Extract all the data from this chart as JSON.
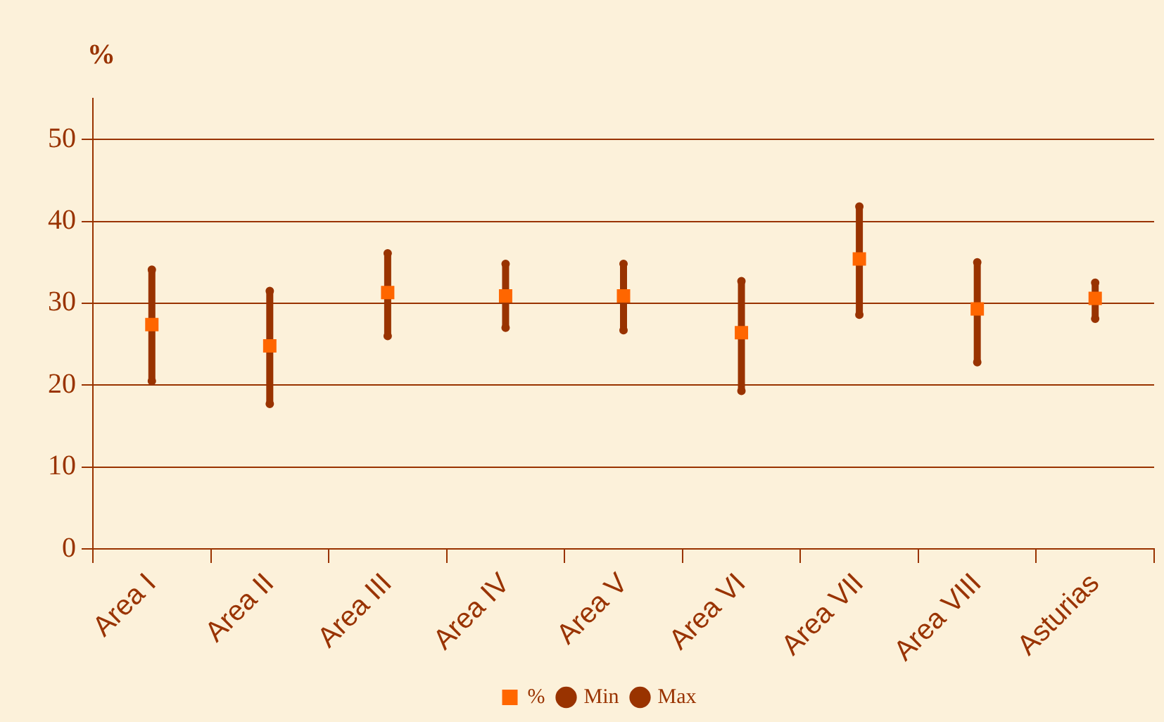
{
  "chart_data": {
    "type": "scatter",
    "ylabel": "%",
    "categories": [
      "Area I",
      "Area II",
      "Area III",
      "Area IV",
      "Area V",
      "Area VI",
      "Area VII",
      "Area VIII",
      "Asturias"
    ],
    "series": [
      {
        "name": "%",
        "color": "#ff6600",
        "marker": "square",
        "values": [
          27.4,
          24.8,
          31.3,
          30.9,
          30.9,
          26.4,
          35.4,
          29.3,
          30.6
        ]
      },
      {
        "name": "Min",
        "color": "#993300",
        "marker": "circle",
        "values": [
          20.5,
          17.7,
          26.0,
          27.0,
          26.7,
          19.3,
          28.6,
          22.8,
          28.1
        ]
      },
      {
        "name": "Max",
        "color": "#993300",
        "marker": "circle",
        "values": [
          34.1,
          31.5,
          36.1,
          34.8,
          34.8,
          32.7,
          41.8,
          35.0,
          32.5
        ]
      }
    ],
    "ylim": [
      0,
      55
    ],
    "yticks": [
      0,
      10,
      20,
      30,
      40,
      50
    ],
    "grid": "y",
    "legend": "bottom"
  }
}
